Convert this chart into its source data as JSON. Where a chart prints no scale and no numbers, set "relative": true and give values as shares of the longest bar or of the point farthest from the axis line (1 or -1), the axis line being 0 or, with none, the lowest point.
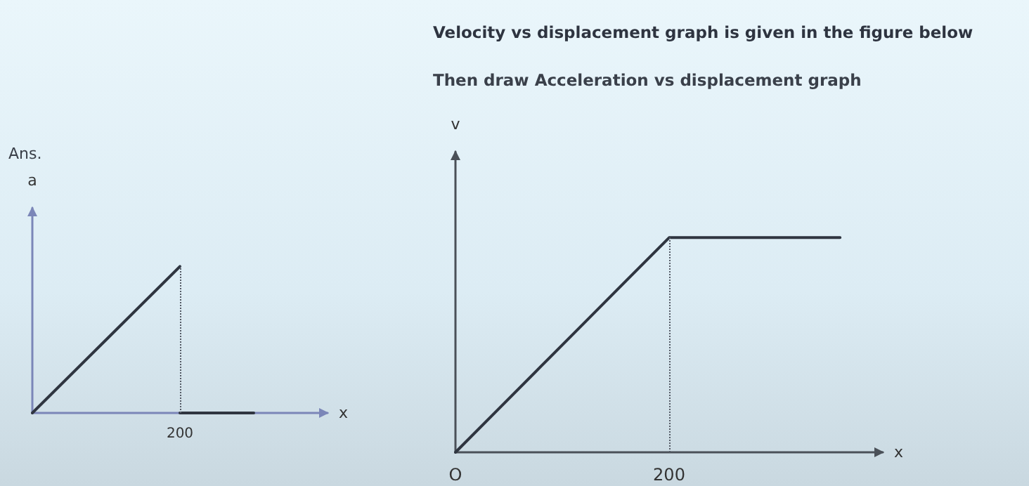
{
  "chart_data": [
    {
      "type": "line",
      "relative": true,
      "annotations": [
        "Ans.",
        "200"
      ],
      "xlabel": "x",
      "ylabel": "a",
      "categories": [
        null,
        null,
        null,
        null,
        null
      ],
      "tick_labels": "x",
      "marker": "none",
      "line_style": "solid",
      "grid": false,
      "series": [
        {
          "color": "#2f3540",
          "values": [
            0,
            0.5,
            1,
            null,
            null
          ]
        },
        {
          "color": "#2f3540",
          "values": [
            null,
            null,
            0,
            0,
            null
          ]
        }
      ]
    },
    {
      "type": "line",
      "relative": true,
      "title": "Velocity vs displacement graph is given in the figure below",
      "subtitle": "Then draw Acceleration vs displacement graph",
      "xlabel": "x",
      "ylabel": "v",
      "categories": [
        "O",
        null,
        null,
        null,
        null,
        "200",
        null,
        null,
        null,
        null,
        null
      ],
      "tick_labels": "x",
      "marker": "none",
      "line_style": "solid",
      "grid": false,
      "series": [
        {
          "color": "#2f3540",
          "values": [
            0,
            0.2,
            0.4,
            0.6,
            0.8,
            1,
            1,
            1,
            1,
            1,
            null
          ]
        }
      ],
      "ref_lines": [
        {
          "axis": "x",
          "value": "200",
          "line_style": "dotted",
          "color": "#555b66"
        }
      ]
    }
  ]
}
